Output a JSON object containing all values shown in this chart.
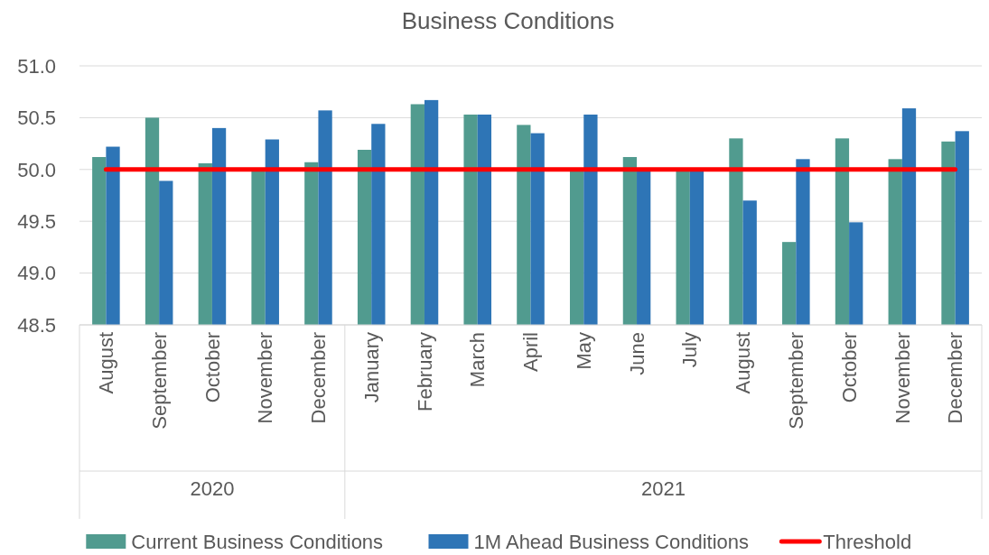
{
  "chart_data": {
    "type": "bar",
    "title": "Business Conditions",
    "categories": [
      "August",
      "September",
      "October",
      "November",
      "December",
      "January",
      "February",
      "March",
      "April",
      "May",
      "June",
      "July",
      "August",
      "September",
      "October",
      "November",
      "December"
    ],
    "series": [
      {
        "name": "Current Business Conditions",
        "color": "#519b8f",
        "values": [
          50.12,
          50.5,
          50.06,
          50.0,
          50.07,
          50.19,
          50.63,
          50.53,
          50.43,
          50.0,
          50.12,
          50.0,
          50.3,
          49.3,
          50.3,
          50.1,
          50.27
        ]
      },
      {
        "name": "1M Ahead Business Conditions",
        "color": "#2e75b6",
        "values": [
          50.22,
          49.89,
          50.4,
          50.29,
          50.57,
          50.44,
          50.67,
          50.53,
          50.35,
          50.53,
          50.0,
          50.0,
          49.7,
          50.1,
          49.49,
          50.59,
          50.37
        ]
      },
      {
        "name": "Threshold",
        "type": "line",
        "color": "#ff0000",
        "values": [
          50,
          50,
          50,
          50,
          50,
          50,
          50,
          50,
          50,
          50,
          50,
          50,
          50,
          50,
          50,
          50,
          50
        ]
      }
    ],
    "annotations": [
      "2020",
      "2021"
    ],
    "ylim": [
      48.5,
      51.0
    ],
    "yticks": [
      {
        "value": 48.5,
        "label": "48.5"
      },
      {
        "value": 49.0,
        "label": "49.0"
      },
      {
        "value": 49.5,
        "label": "49.5"
      },
      {
        "value": 50.0,
        "label": "50.0"
      },
      {
        "value": 50.5,
        "label": "50.5"
      },
      {
        "value": 51.0,
        "label": "51.0"
      }
    ],
    "grid": "y",
    "legend": "bottom"
  }
}
